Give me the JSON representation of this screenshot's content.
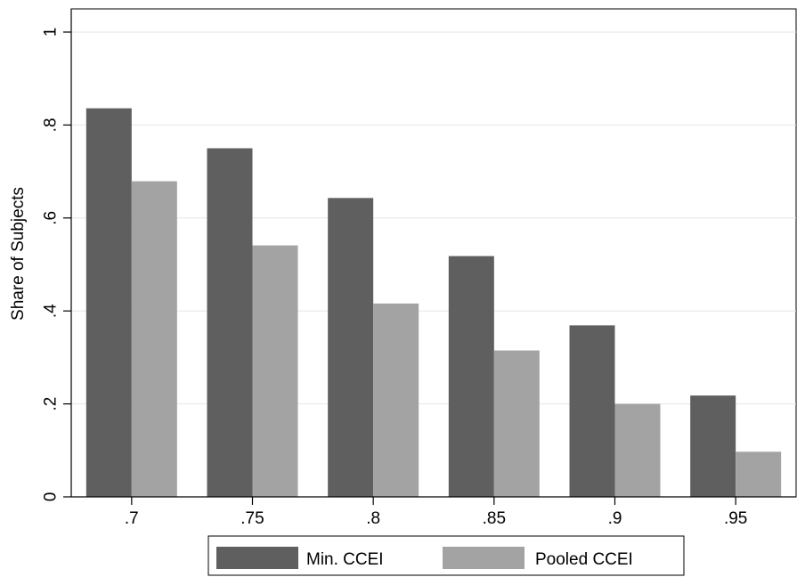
{
  "chart_data": {
    "type": "bar",
    "title": "",
    "xlabel": "",
    "ylabel": "Share of Subjects",
    "categories": [
      ".7",
      ".75",
      ".8",
      ".85",
      ".9",
      ".95"
    ],
    "series": [
      {
        "name": "Min. CCEI",
        "color": "#5f5f5f",
        "values": [
          0.836,
          0.75,
          0.643,
          0.518,
          0.369,
          0.218
        ]
      },
      {
        "name": "Pooled CCEI",
        "color": "#a3a3a3",
        "values": [
          0.679,
          0.541,
          0.416,
          0.315,
          0.2,
          0.097
        ]
      }
    ],
    "ylim": [
      0,
      1
    ],
    "yticks": [
      0,
      0.2,
      0.4,
      0.6,
      0.8,
      1
    ],
    "ytick_labels": [
      "0",
      ".2",
      ".4",
      ".6",
      ".8",
      "1"
    ],
    "grid": true,
    "legend_position": "bottom"
  }
}
